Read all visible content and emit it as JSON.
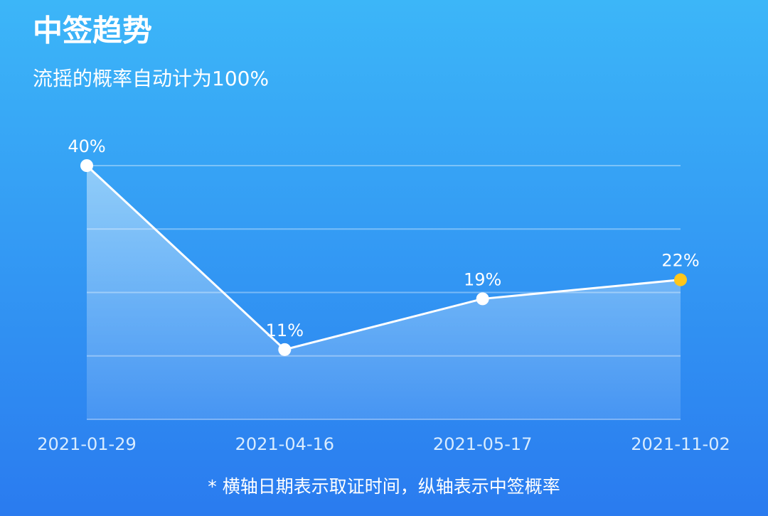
{
  "chart_data": {
    "type": "line",
    "title": "中签趋势",
    "subtitle": "流摇的概率自动计为100%",
    "note": "* 横轴日期表示取证时间，纵轴表示中签概率",
    "categories": [
      "2021-01-29",
      "2021-04-16",
      "2021-05-17",
      "2021-11-02"
    ],
    "values": [
      40,
      11,
      19,
      22
    ],
    "value_labels": [
      "40%",
      "11%",
      "19%",
      "22%"
    ],
    "color": "#ffffff",
    "highlight_color": "#ffc61a",
    "ylim": [
      0,
      40
    ],
    "yticks": [
      0,
      10,
      20,
      30,
      40
    ],
    "grid": true
  }
}
